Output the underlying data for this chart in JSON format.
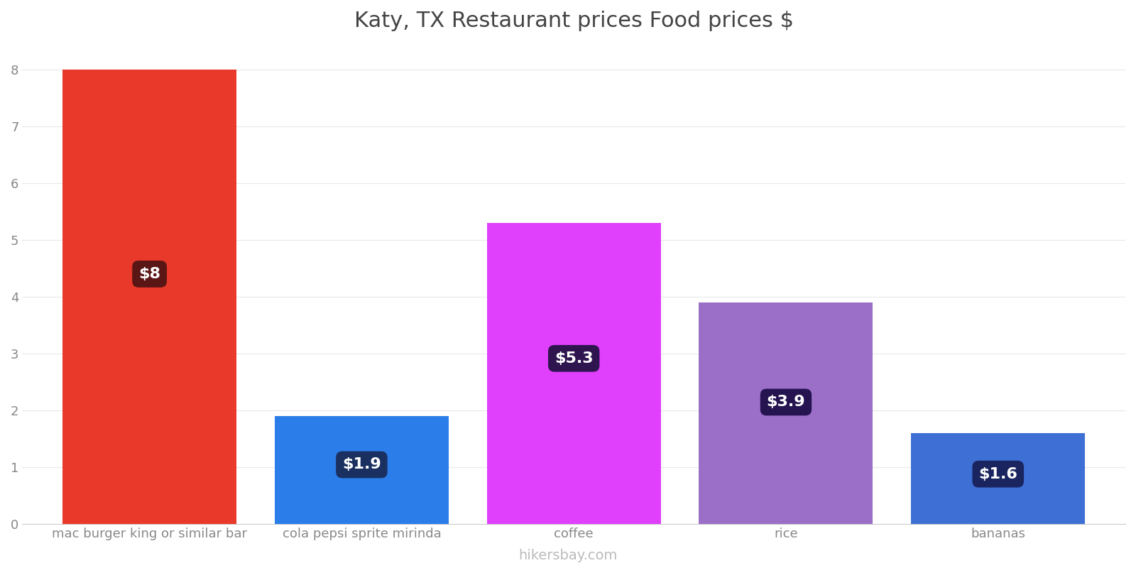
{
  "title": "Katy, TX Restaurant prices Food prices $",
  "categories": [
    "mac burger king or similar bar",
    "cola pepsi sprite mirinda",
    "coffee",
    "rice",
    "bananas"
  ],
  "values": [
    8.0,
    1.9,
    5.3,
    3.9,
    1.6
  ],
  "bar_colors": [
    "#e8392a",
    "#2b7de9",
    "#e040fb",
    "#9b6fc8",
    "#3d6fd4"
  ],
  "label_texts": [
    "$8",
    "$1.9",
    "$5.3",
    "$3.9",
    "$1.6"
  ],
  "label_bg_colors": [
    "#5a1515",
    "#1a3060",
    "#2e1550",
    "#251450",
    "#1a2560"
  ],
  "ylabel_ticks": [
    0,
    1,
    2,
    3,
    4,
    5,
    6,
    7,
    8
  ],
  "ylim": [
    0,
    8.4
  ],
  "watermark": "hikersbay.com",
  "title_fontsize": 22,
  "tick_fontsize": 13,
  "label_fontsize": 16,
  "watermark_fontsize": 14,
  "bar_width": 0.82
}
